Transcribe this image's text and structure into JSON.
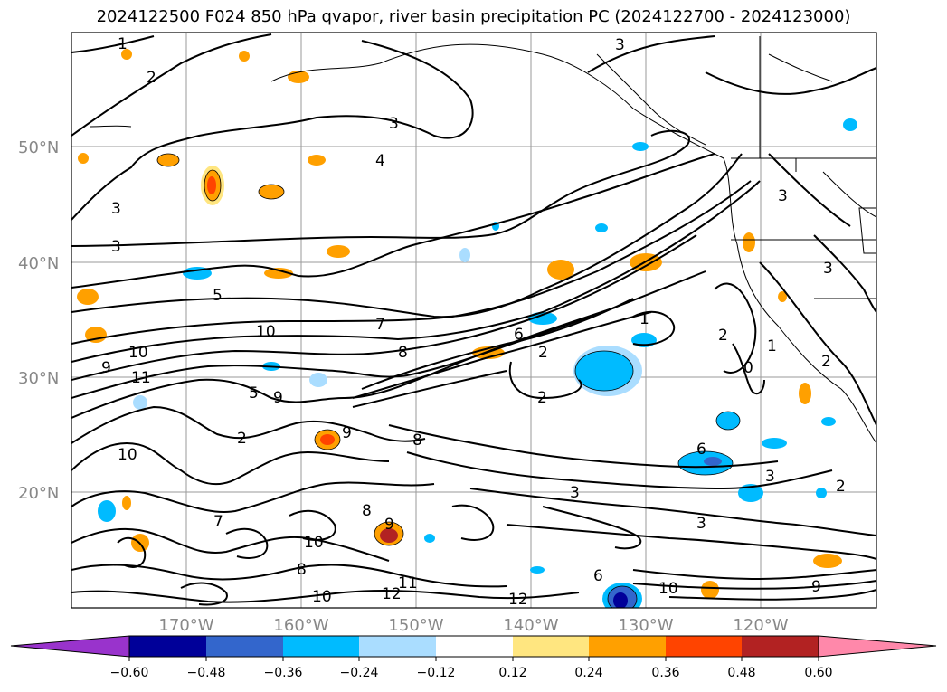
{
  "title": "2024122500 F024 850 hPa qvapor, river basin precipitation PC (2024122700 - 2024123000)",
  "lon_labels": [
    "170°W",
    "160°W",
    "150°W",
    "140°W",
    "130°W",
    "120°W"
  ],
  "lat_labels": [
    "50°N",
    "40°N",
    "30°N",
    "20°N"
  ],
  "contour_labels": [
    "1",
    "2",
    "3",
    "3",
    "4",
    "3",
    "3",
    "5",
    "7",
    "8",
    "10",
    "10",
    "11",
    "9",
    "6",
    "2",
    "1",
    "2",
    "0",
    "1",
    "2",
    "3",
    "6",
    "3",
    "2",
    "3",
    "7",
    "6",
    "10",
    "9",
    "12",
    "11",
    "12",
    "10",
    "10",
    "9",
    "8",
    "8",
    "2",
    "5",
    "9",
    "8",
    "10",
    "9",
    "3",
    "2",
    "3"
  ],
  "colorbar": {
    "ticks": [
      "−0.60",
      "−0.48",
      "−0.36",
      "−0.24",
      "−0.12",
      "0.12",
      "0.24",
      "0.36",
      "0.48",
      "0.60"
    ],
    "colors": [
      "#9933cc",
      "#000099",
      "#3366cc",
      "#00bbff",
      "#aaddff",
      "#ffffff",
      "#ffe680",
      "#ffa000",
      "#ff4400",
      "#b22222",
      "#ff88aa"
    ]
  }
}
